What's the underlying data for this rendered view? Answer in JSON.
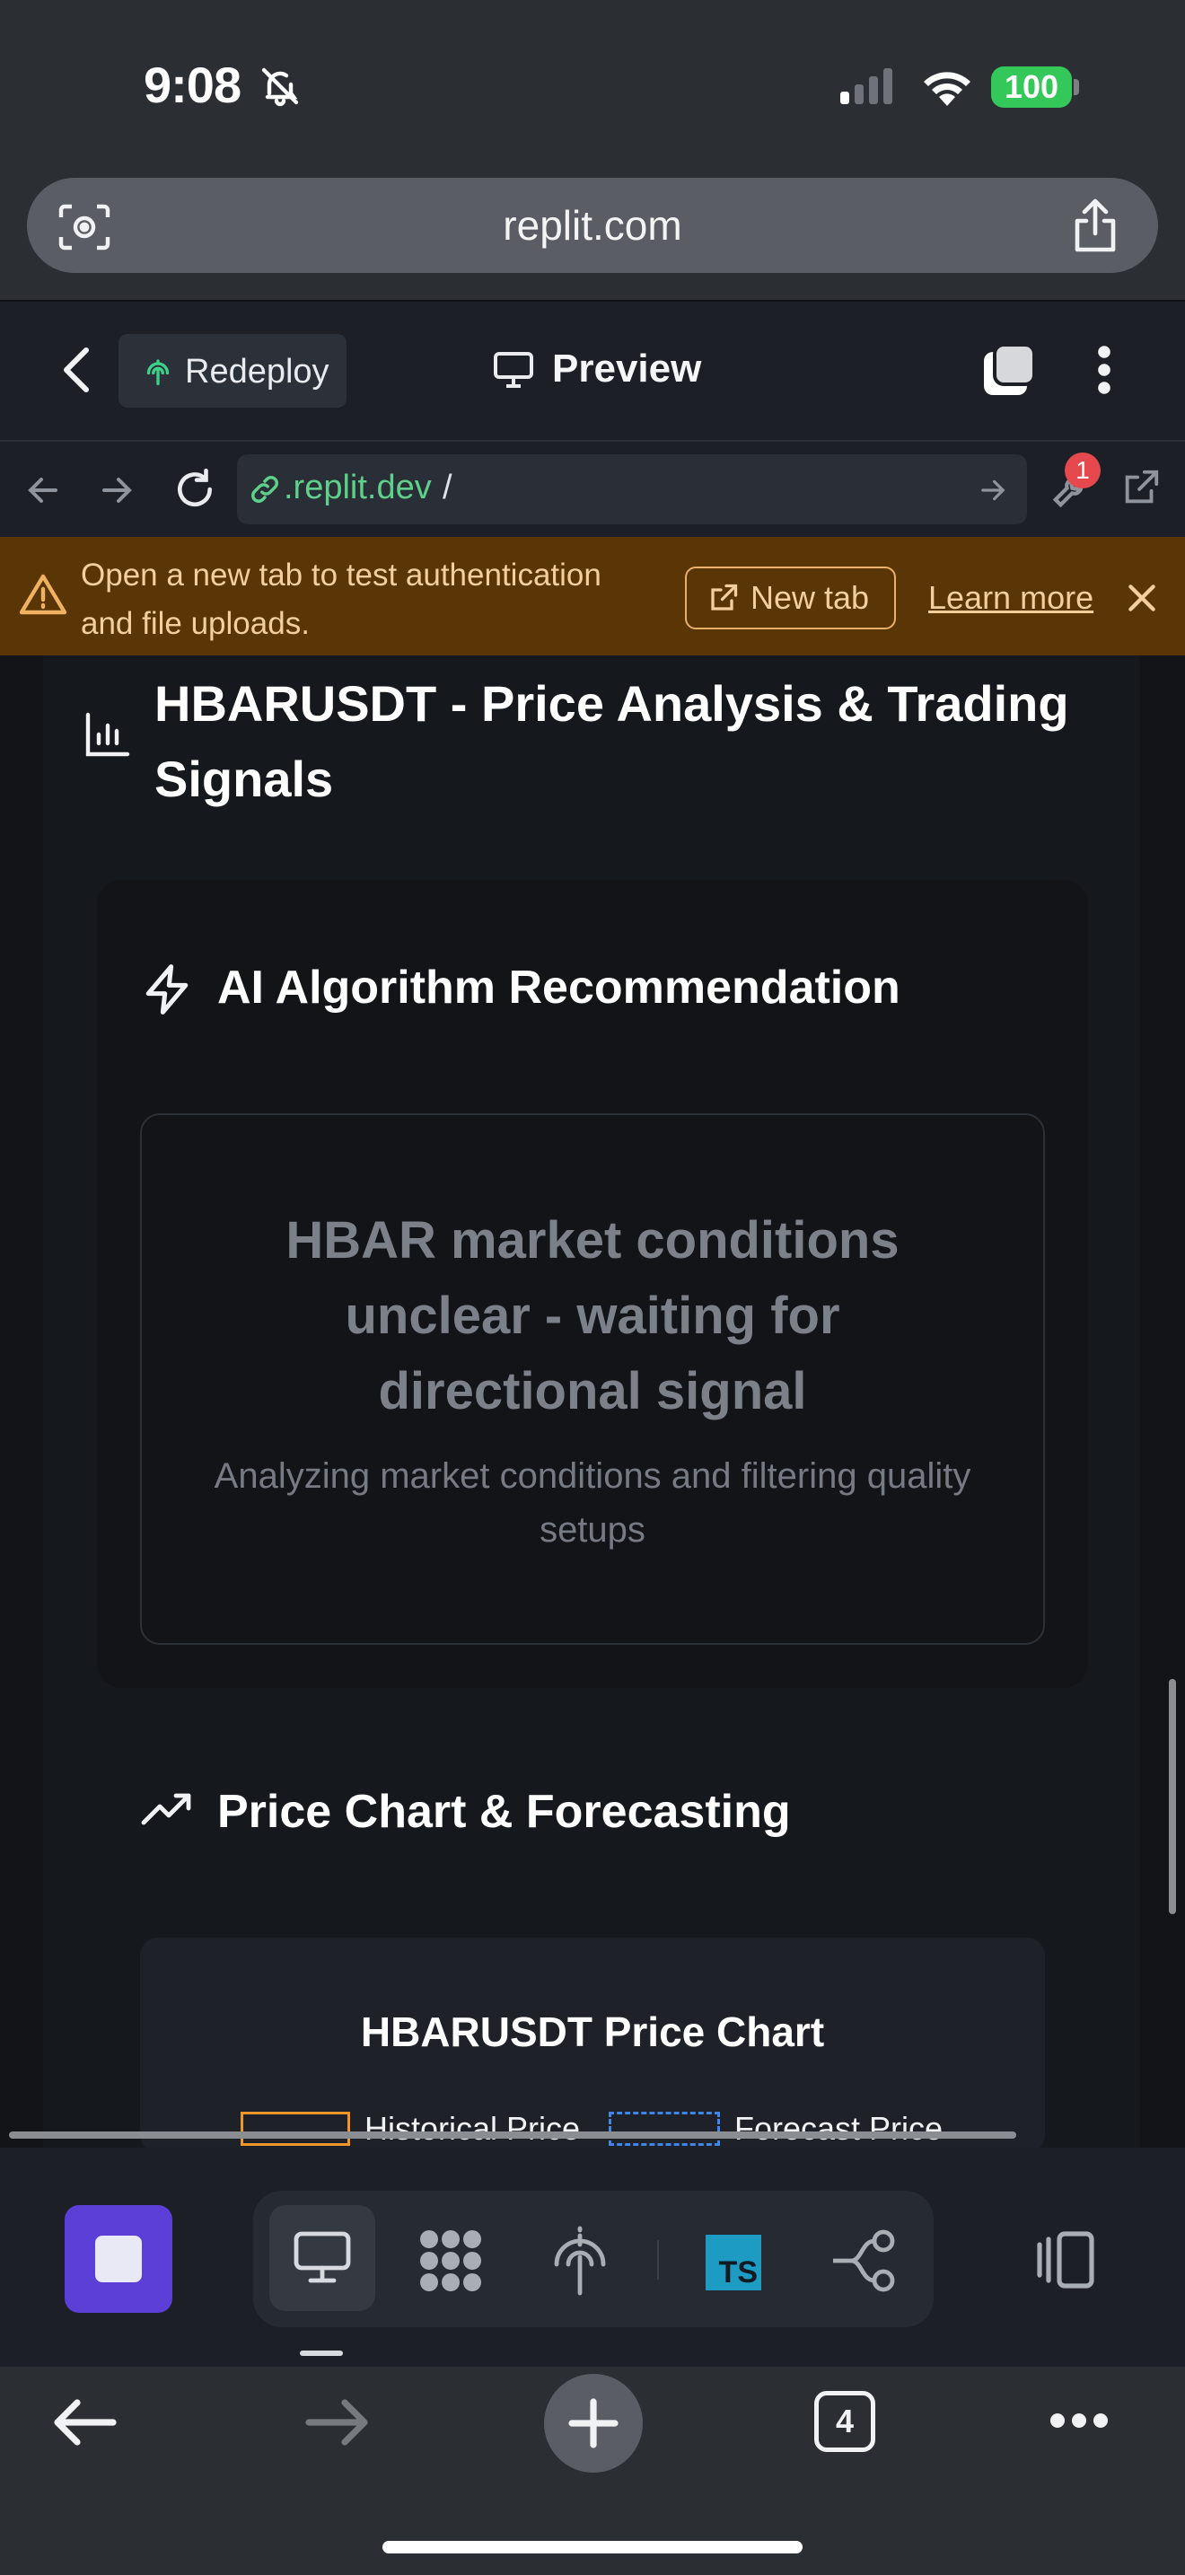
{
  "status_bar": {
    "time": "9:08",
    "battery": "100"
  },
  "browser": {
    "url": "replit.com",
    "tab_count": "4"
  },
  "replit_header": {
    "redeploy_label": "Redeploy",
    "preview_label": "Preview"
  },
  "webview": {
    "url_prefix": ".replit.dev",
    "url_suffix": "/",
    "badge_count": "1"
  },
  "banner": {
    "message": "Open a new tab to test authentication and file uploads.",
    "new_tab_label": "New tab",
    "learn_more_label": "Learn more"
  },
  "page": {
    "title": "HBARUSDT - Price Analysis & Trading Signals",
    "recommendation": {
      "heading": "AI Algorithm Recommendation",
      "message": "HBAR market conditions unclear - waiting for directional signal",
      "subtext": "Analyzing market conditions and filtering quality setups"
    },
    "chart_section": {
      "heading": "Price Chart & Forecasting",
      "chart_title": "HBARUSDT Price Chart",
      "legend": [
        {
          "label": "Historical Price",
          "color": "#f0962a"
        },
        {
          "label": "Forecast Price",
          "color": "#3d86ea"
        }
      ]
    }
  },
  "colors": {
    "accent_purple": "#5b3fd6",
    "warning_bg": "#5a3505",
    "ts_blue": "#1d9bc2"
  }
}
